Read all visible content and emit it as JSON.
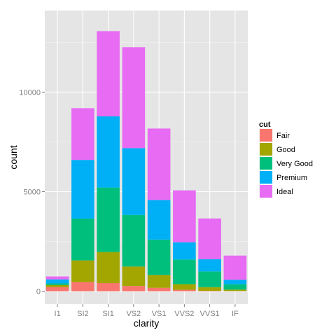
{
  "chart_data": {
    "type": "bar",
    "stacked": true,
    "xlabel": "clarity",
    "ylabel": "count",
    "categories": [
      "I1",
      "SI2",
      "SI1",
      "VS2",
      "VS1",
      "VVS2",
      "VVS1",
      "IF"
    ],
    "ylim": [
      -650,
      14100
    ],
    "yticks": [
      0,
      5000,
      10000
    ],
    "ytick_labels": [
      "0",
      "5000",
      "10000"
    ],
    "grid": true,
    "legend": {
      "title": "cut",
      "placement": "right"
    },
    "series": [
      {
        "name": "Fair",
        "color": "#F8766D",
        "values": [
          210,
          466,
          408,
          261,
          170,
          69,
          17,
          9
        ]
      },
      {
        "name": "Good",
        "color": "#A3A500",
        "values": [
          96,
          1081,
          1560,
          978,
          648,
          286,
          186,
          71
        ]
      },
      {
        "name": "Very Good",
        "color": "#00BF7D",
        "values": [
          84,
          2100,
          3240,
          2591,
          1775,
          1235,
          789,
          268
        ]
      },
      {
        "name": "Premium",
        "color": "#00B0F6",
        "values": [
          205,
          2949,
          3575,
          3357,
          1989,
          870,
          616,
          230
        ]
      },
      {
        "name": "Ideal",
        "color": "#E76BF3",
        "values": [
          146,
          2598,
          4282,
          5071,
          3589,
          2606,
          2047,
          1212
        ]
      }
    ]
  }
}
